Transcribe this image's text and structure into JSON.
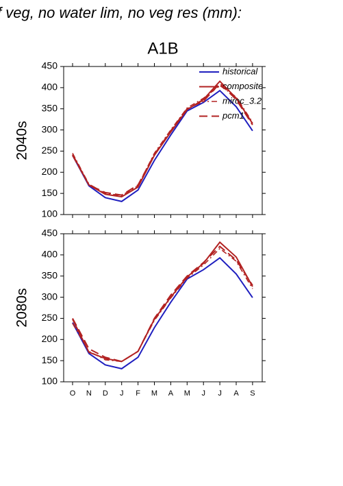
{
  "title": "f veg, no water lim, no veg res (mm):",
  "chart_data": [
    {
      "type": "line",
      "title": "A1B",
      "ylabel": "2040s",
      "ylim": [
        100,
        450
      ],
      "yticks": [
        100,
        150,
        200,
        250,
        300,
        350,
        400,
        450
      ],
      "legend": "upper right",
      "series": [
        {
          "name": "historical",
          "color": "#1f1fbf",
          "dash": "solid",
          "values": [
            240,
            168,
            140,
            131,
            158,
            228,
            288,
            345,
            365,
            393,
            355,
            298
          ]
        },
        {
          "name": "composite",
          "color": "#b22222",
          "dash": "solid",
          "values": [
            242,
            170,
            148,
            142,
            165,
            240,
            295,
            348,
            372,
            415,
            375,
            315
          ]
        },
        {
          "name": "miroc_3.2",
          "color": "#b22222",
          "dash": "dashdot",
          "values": [
            245,
            172,
            150,
            145,
            168,
            245,
            300,
            352,
            375,
            405,
            378,
            318
          ]
        },
        {
          "name": "pcm1",
          "color": "#b22222",
          "dash": "longdash",
          "values": [
            240,
            170,
            152,
            146,
            170,
            242,
            298,
            350,
            368,
            410,
            372,
            312
          ]
        }
      ]
    },
    {
      "type": "line",
      "ylabel": "2080s",
      "categories": [
        "O",
        "N",
        "D",
        "J",
        "F",
        "M",
        "A",
        "M",
        "J",
        "J",
        "A",
        "S"
      ],
      "ylim": [
        100,
        450
      ],
      "yticks": [
        100,
        150,
        200,
        250,
        300,
        350,
        400,
        450
      ],
      "series": [
        {
          "color": "#1f1fbf",
          "dash": "solid",
          "values": [
            240,
            167,
            140,
            131,
            158,
            228,
            288,
            343,
            365,
            393,
            355,
            299
          ]
        },
        {
          "color": "#b22222",
          "dash": "solid",
          "values": [
            248,
            170,
            155,
            148,
            172,
            248,
            300,
            348,
            380,
            430,
            395,
            325
          ]
        },
        {
          "color": "#b22222",
          "dash": "dashdot",
          "values": [
            238,
            172,
            152,
            148,
            172,
            245,
            298,
            345,
            376,
            415,
            385,
            320
          ]
        },
        {
          "color": "#b22222",
          "dash": "longdash",
          "values": [
            250,
            178,
            158,
            148,
            172,
            250,
            305,
            350,
            382,
            420,
            388,
            328
          ]
        }
      ]
    }
  ]
}
